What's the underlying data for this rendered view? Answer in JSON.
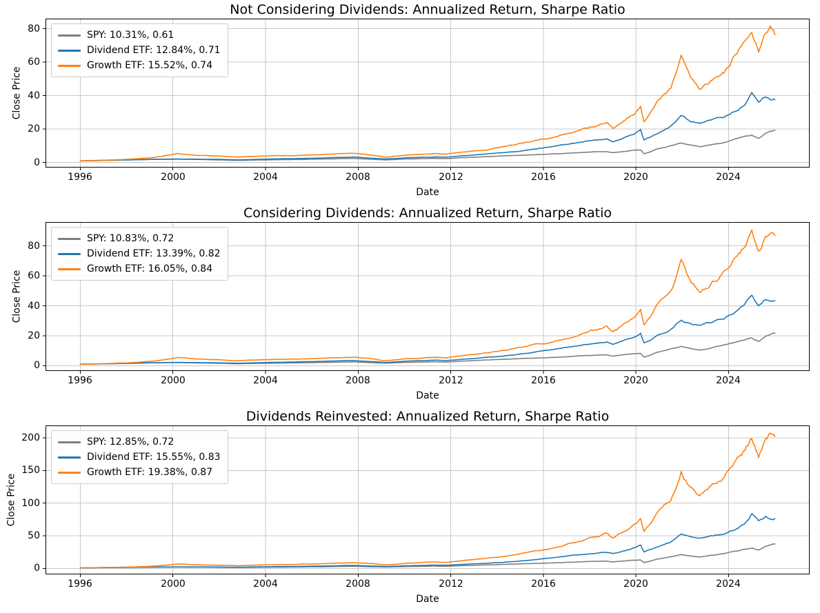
{
  "figure": {
    "x_axis_label": "Date",
    "y_axis_label": "Close Price"
  },
  "colors": {
    "spy": "#7f7f7f",
    "dividend_etf": "#1f77b4",
    "growth_etf": "#ff7f0e",
    "grid": "#c8c8c8",
    "spine": "#000000",
    "legend_border": "#cccccc",
    "text": "#000000",
    "background": "#ffffff"
  },
  "chart_data": [
    {
      "type": "line",
      "title": "Not Considering Dividends: Annualized Return, Sharpe Ratio",
      "xlabel": "Date",
      "ylabel": "Close Price",
      "grid": true,
      "legend_position": "upper left",
      "xlim": [
        1994.5,
        2027.5
      ],
      "ylim": [
        -3,
        86
      ],
      "x_ticks": [
        1996,
        2000,
        2004,
        2008,
        2012,
        2016,
        2020,
        2024
      ],
      "y_ticks": [
        0,
        20,
        40,
        60,
        80
      ],
      "x": [
        1996,
        1997,
        1998,
        1999,
        2000.2,
        2001,
        2002,
        2002.8,
        2003.6,
        2004.5,
        2005.5,
        2006.5,
        2007.8,
        2008.6,
        2009.2,
        2010,
        2011.3,
        2011.8,
        2012.5,
        2013.5,
        2014.5,
        2015.6,
        2016.2,
        2017,
        2018,
        2018.75,
        2019,
        2019.9,
        2020.2,
        2020.35,
        2020.9,
        2021.5,
        2021.95,
        2022.4,
        2022.75,
        2023.3,
        2023.8,
        2024.3,
        2024.7,
        2025,
        2025.3,
        2025.6,
        2025.8,
        2026
      ],
      "series": [
        {
          "name": "SPY",
          "legend_label": "SPY: 10.31%, 0.61",
          "annualized_return_pct": 10.31,
          "sharpe_ratio": 0.61,
          "color": "#7f7f7f",
          "volatility": 0.01,
          "values": [
            1.0,
            1.25,
            1.55,
            1.85,
            2.05,
            1.85,
            1.6,
            1.3,
            1.5,
            1.7,
            1.85,
            2.1,
            2.5,
            1.95,
            1.6,
            2.1,
            2.5,
            2.3,
            2.9,
            3.5,
            4.1,
            4.7,
            5.0,
            5.6,
            6.3,
            6.6,
            5.9,
            7.3,
            7.5,
            5.2,
            8.0,
            10.0,
            11.6,
            10.4,
            9.5,
            10.8,
            12.2,
            14.0,
            15.5,
            16.5,
            14.5,
            17.5,
            18.5,
            19.3
          ]
        },
        {
          "name": "Dividend ETF",
          "legend_label": "Dividend ETF: 12.84%, 0.71",
          "annualized_return_pct": 12.84,
          "sharpe_ratio": 0.71,
          "color": "#1f77b4",
          "volatility": 0.013,
          "values": [
            1.0,
            1.3,
            1.6,
            1.9,
            2.15,
            2.0,
            1.9,
            1.6,
            1.9,
            2.2,
            2.45,
            2.8,
            3.3,
            2.6,
            2.1,
            2.8,
            3.4,
            3.2,
            4.0,
            5.0,
            6.2,
            8.0,
            9.3,
            11.0,
            13.0,
            14.0,
            12.5,
            17.0,
            19.5,
            13.5,
            17.5,
            21.5,
            27.5,
            24.5,
            23.5,
            25.5,
            27.5,
            30.5,
            35.0,
            42.5,
            35.5,
            39.0,
            37.0,
            37.5
          ]
        },
        {
          "name": "Growth ETF",
          "legend_label": "Growth ETF: 15.52%, 0.74",
          "annualized_return_pct": 15.52,
          "sharpe_ratio": 0.74,
          "color": "#ff7f0e",
          "volatility": 0.016,
          "values": [
            1.0,
            1.4,
            1.9,
            2.8,
            5.5,
            4.4,
            3.9,
            3.2,
            3.7,
            4.1,
            4.3,
            4.8,
            5.5,
            4.5,
            3.2,
            4.4,
            5.4,
            5.0,
            6.2,
            7.8,
            10.0,
            13.0,
            14.0,
            17.0,
            21.0,
            24.0,
            20.5,
            29.0,
            33.0,
            24.0,
            36.0,
            44.0,
            62.0,
            50.0,
            44.0,
            50.0,
            55.0,
            65.0,
            71.0,
            78.0,
            66.0,
            76.0,
            79.0,
            76.5
          ]
        }
      ]
    },
    {
      "type": "line",
      "title": "Considering Dividends: Annualized Return, Sharpe Ratio",
      "xlabel": "Date",
      "ylabel": "Close Price",
      "grid": true,
      "legend_position": "upper left",
      "xlim": [
        1994.5,
        2027.5
      ],
      "ylim": [
        -3.5,
        96
      ],
      "x_ticks": [
        1996,
        2000,
        2004,
        2008,
        2012,
        2016,
        2020,
        2024
      ],
      "y_ticks": [
        0,
        20,
        40,
        60,
        80
      ],
      "x": [
        1996,
        1997,
        1998,
        1999,
        2000.2,
        2001,
        2002,
        2002.8,
        2003.6,
        2004.5,
        2005.5,
        2006.5,
        2007.8,
        2008.6,
        2009.2,
        2010,
        2011.3,
        2011.8,
        2012.5,
        2013.5,
        2014.5,
        2015.6,
        2016.2,
        2017,
        2018,
        2018.75,
        2019,
        2019.9,
        2020.2,
        2020.35,
        2020.9,
        2021.5,
        2021.95,
        2022.4,
        2022.75,
        2023.3,
        2023.8,
        2024.3,
        2024.7,
        2025,
        2025.3,
        2025.6,
        2025.8,
        2026
      ],
      "series": [
        {
          "name": "SPY",
          "legend_label": "SPY: 10.83%, 0.72",
          "annualized_return_pct": 10.83,
          "sharpe_ratio": 0.72,
          "color": "#7f7f7f",
          "volatility": 0.01,
          "values": [
            1.0,
            1.25,
            1.55,
            1.9,
            2.1,
            1.9,
            1.65,
            1.35,
            1.55,
            1.75,
            1.95,
            2.2,
            2.6,
            2.05,
            1.7,
            2.2,
            2.65,
            2.45,
            3.1,
            3.8,
            4.45,
            5.1,
            5.45,
            6.1,
            6.9,
            7.3,
            6.5,
            8.1,
            8.3,
            5.8,
            8.9,
            11.1,
            13.0,
            11.6,
            10.6,
            12.1,
            13.7,
            15.8,
            17.5,
            18.7,
            16.4,
            19.8,
            21.0,
            21.9
          ]
        },
        {
          "name": "Dividend ETF",
          "legend_label": "Dividend ETF: 13.39%, 0.82",
          "annualized_return_pct": 13.39,
          "sharpe_ratio": 0.82,
          "color": "#1f77b4",
          "volatility": 0.013,
          "values": [
            1.0,
            1.3,
            1.6,
            1.95,
            2.2,
            2.05,
            1.95,
            1.65,
            2.0,
            2.3,
            2.55,
            2.95,
            3.5,
            2.75,
            2.25,
            3.0,
            3.7,
            3.45,
            4.35,
            5.45,
            6.8,
            8.85,
            10.3,
            12.2,
            14.5,
            15.7,
            14.0,
            19.2,
            22.0,
            15.3,
            19.8,
            24.4,
            31.3,
            28.0,
            26.9,
            29.2,
            31.6,
            35.1,
            40.4,
            47.5,
            41.0,
            44.0,
            42.5,
            43.5
          ]
        },
        {
          "name": "Growth ETF",
          "legend_label": "Growth ETF: 16.05%, 0.84",
          "annualized_return_pct": 16.05,
          "sharpe_ratio": 0.84,
          "color": "#ff7f0e",
          "volatility": 0.016,
          "values": [
            1.0,
            1.4,
            1.9,
            2.85,
            5.6,
            4.5,
            4.0,
            3.3,
            3.85,
            4.25,
            4.5,
            5.0,
            5.8,
            4.75,
            3.4,
            4.7,
            5.8,
            5.35,
            6.7,
            8.45,
            10.9,
            14.2,
            15.3,
            18.7,
            23.2,
            26.5,
            22.7,
            32.2,
            36.7,
            26.7,
            40.2,
            49.2,
            69.5,
            56.2,
            49.5,
            56.5,
            62.0,
            73.5,
            80.5,
            88.5,
            75.0,
            86.5,
            89.5,
            87.0
          ]
        }
      ]
    },
    {
      "type": "line",
      "title": "Dividends Reinvested: Annualized Return, Sharpe Ratio",
      "xlabel": "Date",
      "ylabel": "Close Price",
      "grid": true,
      "legend_position": "upper left",
      "xlim": [
        1994.5,
        2027.5
      ],
      "ylim": [
        -9,
        219
      ],
      "x_ticks": [
        1996,
        2000,
        2004,
        2008,
        2012,
        2016,
        2020,
        2024
      ],
      "y_ticks": [
        0,
        50,
        100,
        150,
        200
      ],
      "x": [
        1996,
        1997,
        1998,
        1999,
        2000.2,
        2001,
        2002,
        2002.8,
        2003.6,
        2004.5,
        2005.5,
        2006.5,
        2007.8,
        2008.6,
        2009.2,
        2010,
        2011.3,
        2011.8,
        2012.5,
        2013.5,
        2014.5,
        2015.6,
        2016.2,
        2017,
        2018,
        2018.75,
        2019,
        2019.9,
        2020.2,
        2020.35,
        2020.9,
        2021.5,
        2021.95,
        2022.4,
        2022.75,
        2023.3,
        2023.8,
        2024.3,
        2024.7,
        2025,
        2025.3,
        2025.6,
        2025.8,
        2026
      ],
      "series": [
        {
          "name": "SPY",
          "legend_label": "SPY: 12.85%, 0.72",
          "annualized_return_pct": 12.85,
          "sharpe_ratio": 0.72,
          "color": "#7f7f7f",
          "volatility": 0.01,
          "values": [
            1.0,
            1.3,
            1.65,
            2.0,
            2.3,
            2.15,
            1.9,
            1.6,
            1.85,
            2.15,
            2.4,
            2.8,
            3.4,
            2.7,
            2.25,
            3.0,
            3.7,
            3.45,
            4.4,
            5.45,
            6.5,
            7.6,
            8.2,
            9.3,
            10.7,
            11.3,
            10.2,
            12.8,
            13.2,
            9.2,
            14.3,
            18.1,
            21.1,
            19.1,
            17.5,
            20.1,
            22.9,
            26.5,
            29.6,
            31.6,
            28.0,
            33.9,
            35.9,
            37.6
          ]
        },
        {
          "name": "Dividend ETF",
          "legend_label": "Dividend ETF: 15.55%, 0.83",
          "annualized_return_pct": 15.55,
          "sharpe_ratio": 0.83,
          "color": "#1f77b4",
          "volatility": 0.013,
          "values": [
            1.0,
            1.35,
            1.7,
            2.1,
            2.45,
            2.35,
            2.3,
            2.0,
            2.4,
            2.85,
            3.25,
            3.8,
            4.65,
            3.75,
            3.05,
            4.15,
            5.2,
            4.95,
            6.3,
            8.0,
            10.2,
            13.4,
            15.8,
            19.0,
            22.9,
            25.0,
            22.5,
            31.1,
            35.8,
            24.9,
            32.6,
            40.5,
            52.2,
            46.9,
            45.2,
            49.6,
            54.0,
            60.4,
            69.7,
            85.1,
            71.5,
            79.0,
            75.0,
            76.4
          ]
        },
        {
          "name": "Growth ETF",
          "legend_label": "Growth ETF: 19.38%, 0.87",
          "annualized_return_pct": 19.38,
          "sharpe_ratio": 0.87,
          "color": "#ff7f0e",
          "volatility": 0.016,
          "values": [
            1.0,
            1.5,
            2.1,
            3.25,
            6.8,
            5.6,
            5.2,
            4.4,
            5.25,
            6.0,
            6.55,
            7.55,
            9.05,
            7.6,
            5.5,
            7.8,
            9.9,
            9.3,
            11.8,
            15.3,
            20.1,
            26.9,
            29.5,
            36.5,
            46.3,
            54.0,
            46.3,
            67.0,
            76.7,
            56.0,
            85.0,
            105.0,
            150.0,
            122.0,
            108.0,
            130.0,
            139.0,
            166.0,
            182.0,
            202.0,
            172.0,
            199.0,
            208.0,
            202.0
          ]
        }
      ]
    }
  ]
}
